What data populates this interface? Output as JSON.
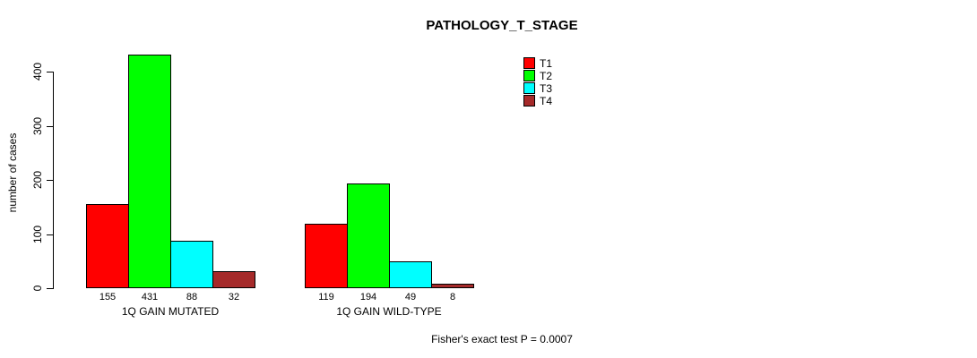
{
  "title": "PATHOLOGY_T_STAGE",
  "annotation": "Fisher's exact test P = 0.0007",
  "chart_data": {
    "type": "bar",
    "title": "PATHOLOGY_T_STAGE",
    "xlabel": "",
    "ylabel": "number of cases",
    "ylim": [
      0,
      400
    ],
    "yticks": [
      0,
      100,
      200,
      300,
      400
    ],
    "grid": false,
    "legend_position": "top-right",
    "categories": [
      "1Q GAIN MUTATED",
      "1Q GAIN WILD-TYPE"
    ],
    "series": [
      {
        "name": "T1",
        "color": "#ff0000",
        "values": [
          155,
          119
        ]
      },
      {
        "name": "T2",
        "color": "#00ff00",
        "values": [
          431,
          194
        ]
      },
      {
        "name": "T3",
        "color": "#00ffff",
        "values": [
          88,
          49
        ]
      },
      {
        "name": "T4",
        "color": "#a52a2a",
        "values": [
          32,
          8
        ]
      }
    ],
    "bar_value_labels": [
      [
        "155",
        "431",
        "88",
        "32"
      ],
      [
        "119",
        "194",
        "49",
        "8"
      ]
    ],
    "annotation": "Fisher's exact test P = 0.0007"
  }
}
